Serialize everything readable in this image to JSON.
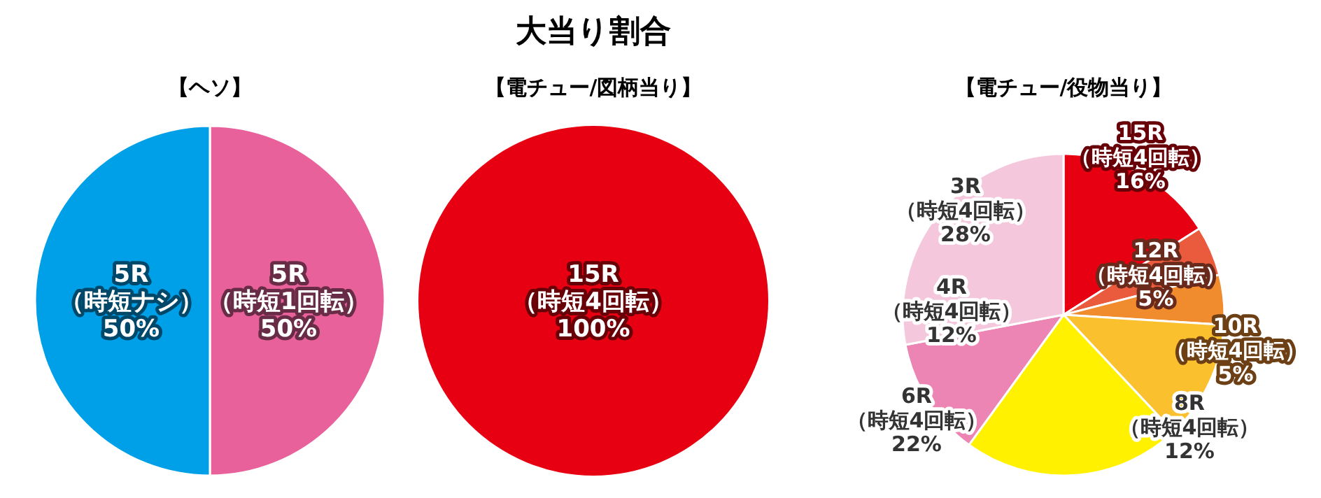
{
  "chart_data": [
    {
      "type": "pie",
      "title": "【ヘソ】",
      "categories": [
        "5R（時短1回転）",
        "5R（時短ナシ）"
      ],
      "values": [
        50,
        50
      ],
      "colors": [
        "#e9619b",
        "#00a0e9"
      ],
      "value_labels": [
        "50%",
        "50%"
      ]
    },
    {
      "type": "pie",
      "title": "大当り割合",
      "subtitle": "【電チュー/図柄当り】",
      "categories": [
        "15R（時短4回転）"
      ],
      "values": [
        100
      ],
      "colors": [
        "#e60012"
      ],
      "value_labels": [
        "100%"
      ]
    },
    {
      "type": "pie",
      "title": "【電チュー/役物当り】",
      "categories": [
        "15R（時短4回転）",
        "12R（時短4回転）",
        "10R（時短4回転）",
        "8R（時短4回転）",
        "6R（時短4回転）",
        "4R（時短4回転）",
        "3R（時短4回転）"
      ],
      "values": [
        16,
        5,
        5,
        12,
        22,
        12,
        28
      ],
      "colors": [
        "#e60012",
        "#ea5a3c",
        "#f08c2e",
        "#fbc02d",
        "#fff100",
        "#ec85b4",
        "#f5c7dc"
      ],
      "value_labels": [
        "16%",
        "5%",
        "5%",
        "12%",
        "22%",
        "12%",
        "28%"
      ]
    }
  ]
}
